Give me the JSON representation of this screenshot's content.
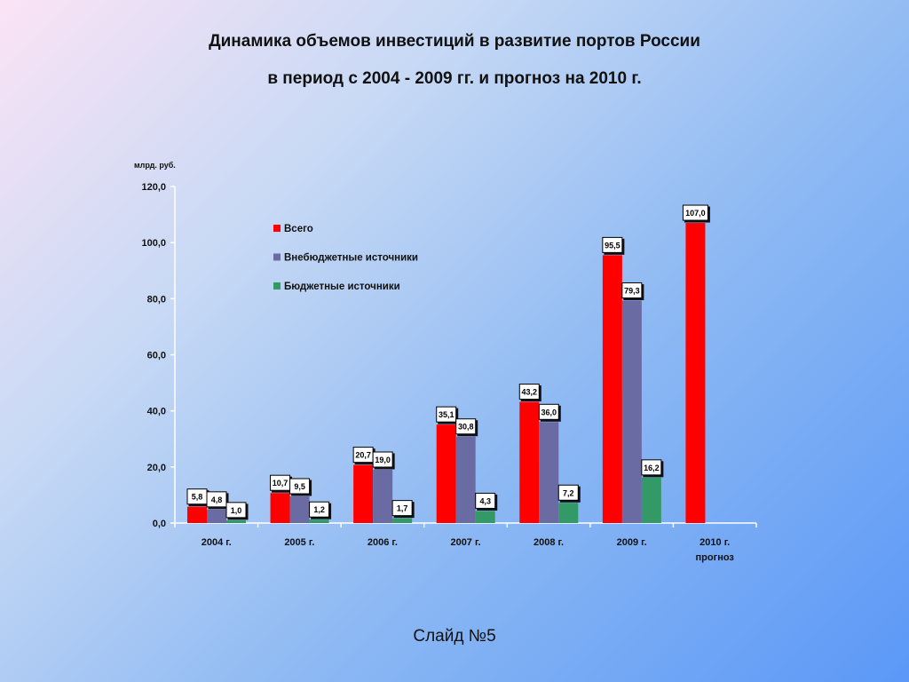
{
  "slide": {
    "title_line1": "Динамика объемов инвестиций в развитие портов России",
    "title_line2": "в период с 2004 - 2009 гг. и прогноз на 2010 г.",
    "slide_number": "Слайд №5"
  },
  "colors": {
    "total": "#ff0000",
    "extra_budget": "#6b6ba3",
    "budget": "#339966"
  },
  "chart_data": {
    "type": "bar",
    "title": "",
    "xlabel": "",
    "ylabel": "млрд. руб.",
    "ylim": [
      0,
      120
    ],
    "yticks": [
      "0,0",
      "20,0",
      "40,0",
      "60,0",
      "80,0",
      "100,0",
      "120,0"
    ],
    "grid": false,
    "legend_position": "top-left inside plot",
    "categories": [
      [
        "2004 г."
      ],
      [
        "2005 г."
      ],
      [
        "2006 г."
      ],
      [
        "2007 г."
      ],
      [
        "2008 г."
      ],
      [
        "2009 г."
      ],
      [
        "2010 г.",
        "прогноз"
      ]
    ],
    "series": [
      {
        "name": "Всего",
        "values": [
          5.8,
          10.7,
          20.7,
          35.1,
          43.2,
          95.5,
          107.0
        ],
        "labels": [
          "5,8",
          "10,7",
          "20,7",
          "35,1",
          "43,2",
          "95,5",
          "107,0"
        ]
      },
      {
        "name": "Внебюджетные источники",
        "values": [
          4.8,
          9.5,
          19.0,
          30.8,
          36.0,
          79.3,
          null
        ],
        "labels": [
          "4,8",
          "9,5",
          "19,0",
          "30,8",
          "36,0",
          "79,3",
          ""
        ]
      },
      {
        "name": "Бюджетные источники",
        "values": [
          1.0,
          1.2,
          1.7,
          4.3,
          7.2,
          16.2,
          null
        ],
        "labels": [
          "1,0",
          "1,2",
          "1,7",
          "4,3",
          "7,2",
          "16,2",
          ""
        ]
      }
    ]
  }
}
